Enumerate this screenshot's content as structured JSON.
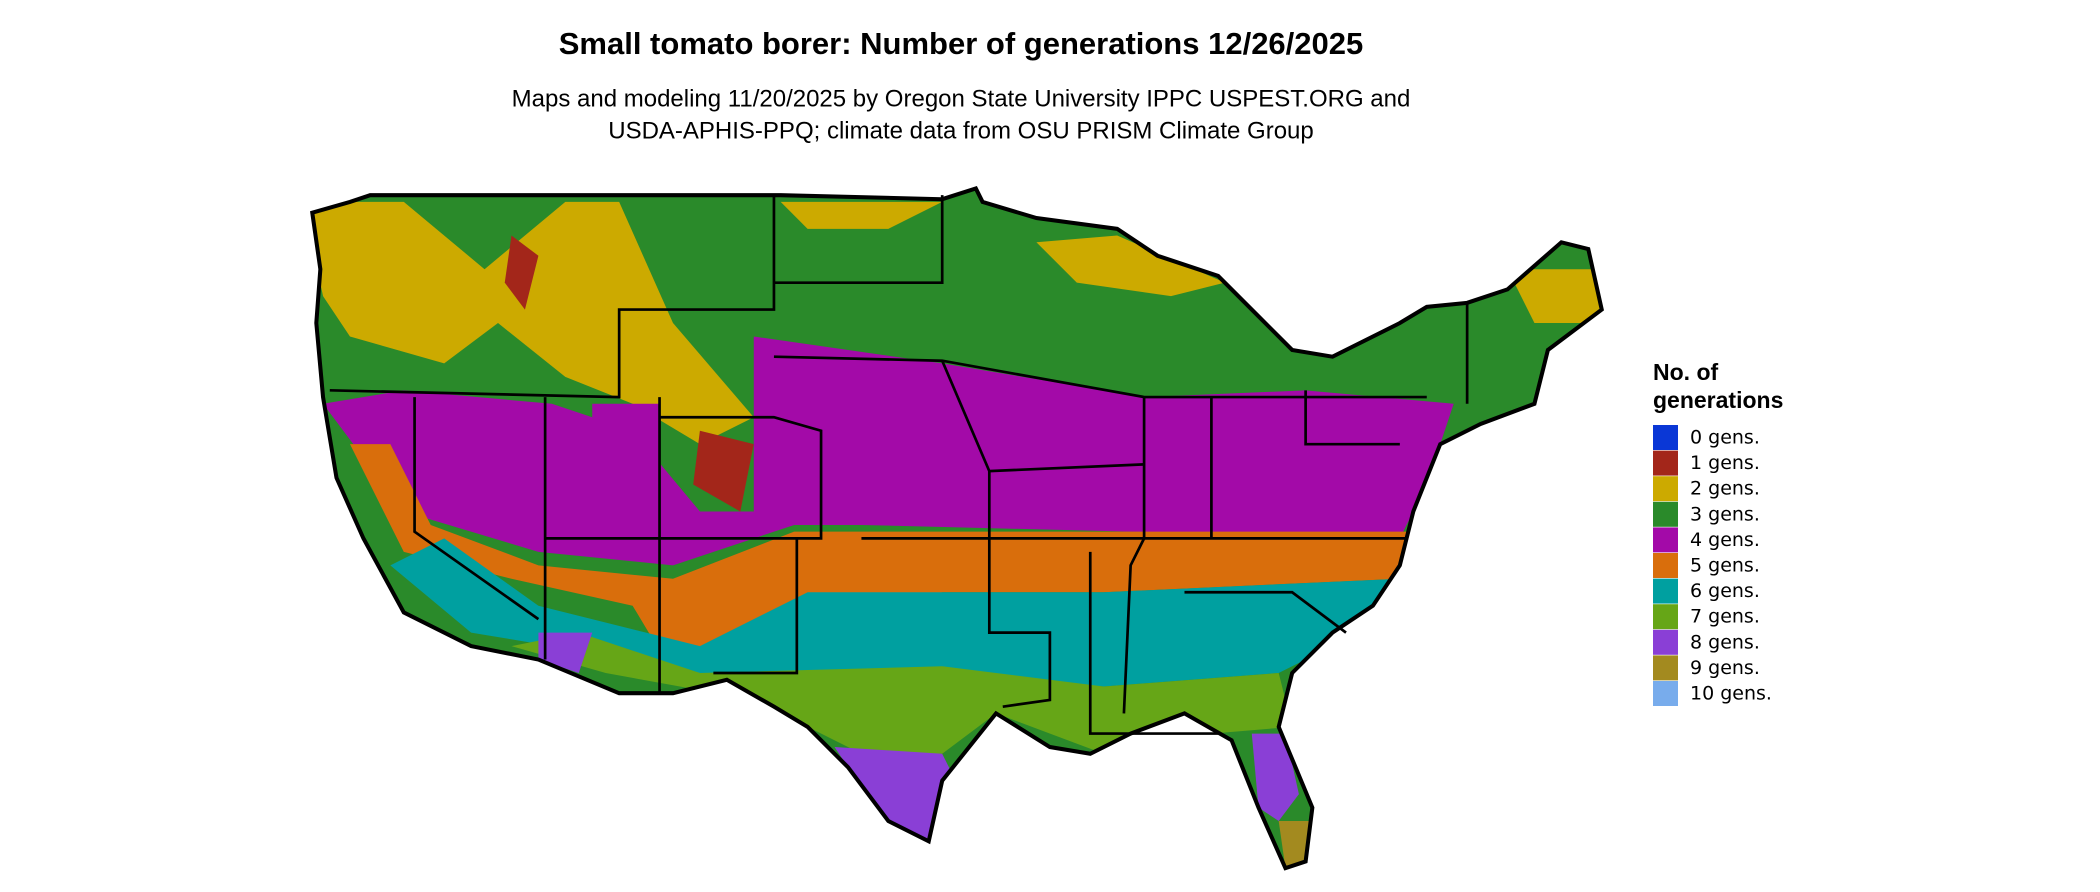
{
  "title": "Small tomato borer: Number of generations 12/26/2025",
  "subtitle": [
    "Maps and modeling 11/20/2025 by Oregon State University IPPC USPEST.ORG and",
    "USDA-APHIS-PPQ; climate data from OSU PRISM Climate Group"
  ],
  "legend": {
    "title": [
      "No. of",
      "generations"
    ],
    "items": [
      {
        "label": "0 gens.",
        "color": "#0a37d6"
      },
      {
        "label": "1 gens.",
        "color": "#a3261a"
      },
      {
        "label": "2 gens.",
        "color": "#ccaa00"
      },
      {
        "label": "3 gens.",
        "color": "#2a8a2a"
      },
      {
        "label": "4 gens.",
        "color": "#a30aa8"
      },
      {
        "label": "5 gens.",
        "color": "#d96e0c"
      },
      {
        "label": "6 gens.",
        "color": "#00a0a0"
      },
      {
        "label": "7 gens.",
        "color": "#66a617"
      },
      {
        "label": "8 gens.",
        "color": "#8a3fd6"
      },
      {
        "label": "9 gens.",
        "color": "#a38a1f"
      },
      {
        "label": "10 gens.",
        "color": "#78acec"
      }
    ]
  }
}
